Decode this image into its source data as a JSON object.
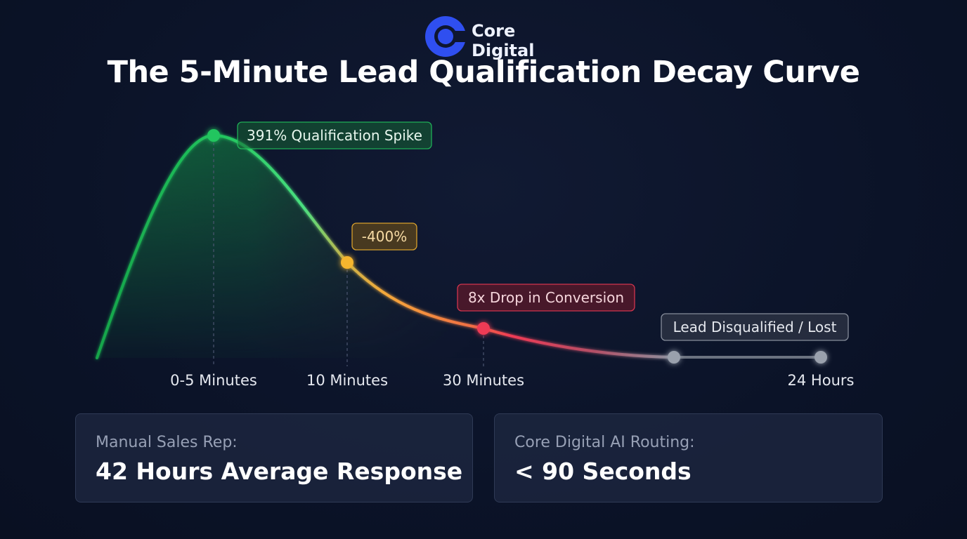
{
  "brand": {
    "name_line1": "Core",
    "name_line2": "Digital",
    "accent": "#2f4ff0"
  },
  "title": "The 5-Minute Lead Qualification Decay Curve",
  "chart_data": {
    "type": "line",
    "title": "The 5-Minute Lead Qualification Decay Curve",
    "x_ticks": [
      "0-5 Minutes",
      "10 Minutes",
      "30 Minutes",
      "24 Hours"
    ],
    "points": [
      {
        "label": "0-5 Minutes",
        "annotation": "391% Qualification Spike",
        "color": "#22c55e"
      },
      {
        "label": "10 Minutes",
        "annotation": "-400%",
        "color": "#f5b52e"
      },
      {
        "label": "30 Minutes",
        "annotation": "8x Drop in Conversion",
        "color": "#ef3a55"
      },
      {
        "label": "",
        "annotation": "Lead Disqualified / Lost",
        "color": "#9aa1ad"
      },
      {
        "label": "24 Hours",
        "annotation": "",
        "color": "#9aa1ad"
      }
    ],
    "grid": false,
    "legend": "none",
    "colors": {
      "green": "#22c55e",
      "amber": "#f5b52e",
      "red": "#ef3a55",
      "gray": "#9aa1ad"
    }
  },
  "cards": [
    {
      "label": "Manual Sales Rep:",
      "value": "42 Hours Average Response"
    },
    {
      "label": "Core Digital AI Routing:",
      "value": "< 90 Seconds"
    }
  ]
}
